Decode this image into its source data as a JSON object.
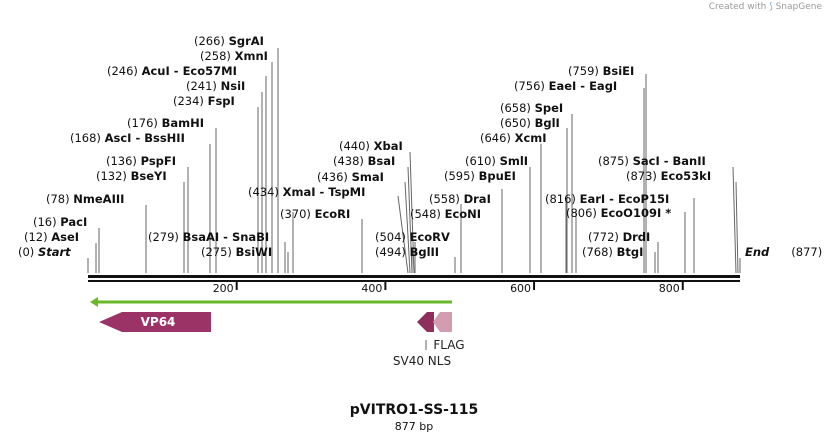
{
  "credit": {
    "prefix": "Created with",
    "brand": "SnapGene",
    "icon": "snapgene-logo-icon"
  },
  "plasmid": {
    "name": "pVITRO1-SS-115",
    "length_label": "877 bp",
    "length": 877
  },
  "axis": {
    "ticks": [
      200,
      400,
      600,
      800
    ]
  },
  "ends": {
    "start": {
      "pos": "(0)",
      "label": "Start"
    },
    "end": {
      "pos": "(877)",
      "label": "End"
    }
  },
  "left_sites": [
    {
      "pos": "(0)",
      "name": "Start",
      "italic": true
    },
    {
      "pos": "(12)",
      "name": "AseI"
    },
    {
      "pos": "(16)",
      "name": "PacI"
    },
    {
      "pos": "(78)",
      "name": "NmeAIII"
    },
    {
      "pos": "(132)",
      "name": "BseYI"
    },
    {
      "pos": "(136)",
      "name": "PspFI"
    },
    {
      "pos": "(168)",
      "name": "AscI",
      "alt": "BssHII"
    },
    {
      "pos": "(176)",
      "name": "BamHI"
    },
    {
      "pos": "(234)",
      "name": "FspI"
    },
    {
      "pos": "(241)",
      "name": "NsiI"
    },
    {
      "pos": "(246)",
      "name": "AcuI",
      "alt": "Eco57MI"
    },
    {
      "pos": "(258)",
      "name": "XmnI"
    },
    {
      "pos": "(266)",
      "name": "SgrAI"
    }
  ],
  "lower_sites": [
    {
      "pos": "(279)",
      "name": "BsaAI",
      "alt": "SnaBI"
    },
    {
      "pos": "(275)",
      "name": "BsiWI"
    }
  ],
  "mid_sites": [
    {
      "pos": "(370)",
      "name": "EcoRI"
    },
    {
      "pos": "(434)",
      "name": "XmaI",
      "alt": "TspMI"
    },
    {
      "pos": "(436)",
      "name": "SmaI"
    },
    {
      "pos": "(438)",
      "name": "BsaI"
    },
    {
      "pos": "(440)",
      "name": "XbaI"
    },
    {
      "pos": "(504)",
      "name": "EcoRV"
    },
    {
      "pos": "(494)",
      "name": "BglII"
    },
    {
      "pos": "(548)",
      "name": "EcoNI"
    },
    {
      "pos": "(558)",
      "name": "DraI"
    },
    {
      "pos": "(595)",
      "name": "BpuEI"
    },
    {
      "pos": "(610)",
      "name": "SmlI"
    },
    {
      "pos": "(646)",
      "name": "XcmI"
    },
    {
      "pos": "(650)",
      "name": "BglI"
    },
    {
      "pos": "(658)",
      "name": "SpeI"
    }
  ],
  "right_sites": [
    {
      "pos": "(756)",
      "name": "EaeI",
      "alt": "EagI"
    },
    {
      "pos": "(759)",
      "name": "BsiEI"
    },
    {
      "pos": "(875)",
      "name": "SacI",
      "alt": "BanII"
    },
    {
      "pos": "(873)",
      "name": "Eco53kI"
    },
    {
      "pos": "(816)",
      "name": "EarI",
      "alt": "EcoP15I"
    },
    {
      "pos": "(806)",
      "name": "EcoO109I *"
    },
    {
      "pos": "(772)",
      "name": "DrdI"
    },
    {
      "pos": "(768)",
      "name": "BtgI"
    }
  ],
  "features": {
    "orf_color": "#6ab82a",
    "vp64": {
      "label": "VP64",
      "color": "#9b3366"
    },
    "sv40": {
      "label": "SV40 NLS",
      "color": "#8f2f5e"
    },
    "flag": {
      "label": "FLAG",
      "color": "#d49cb1"
    }
  }
}
